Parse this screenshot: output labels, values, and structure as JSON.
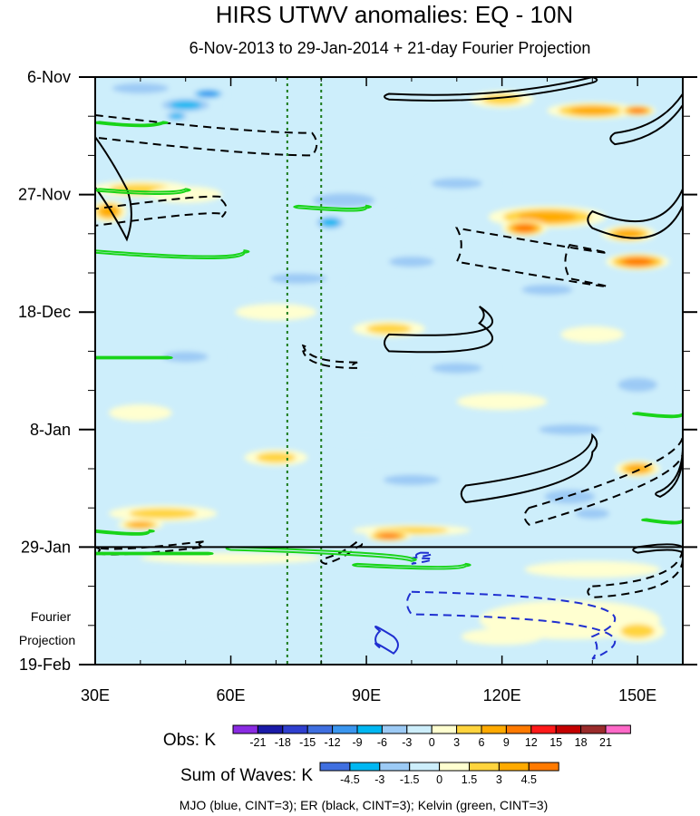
{
  "chart_data": {
    "type": "heatmap",
    "title": "HIRS UTWV anomalies: EQ - 10N",
    "subtitle": "6-Nov-2013 to 29-Jan-2014 + 21-day Fourier Projection",
    "x_axis": {
      "range": [
        30,
        160
      ],
      "ticks": [
        30,
        60,
        90,
        120,
        150
      ],
      "tick_labels": [
        "30E",
        "60E",
        "90E",
        "120E",
        "150E"
      ]
    },
    "y_axis": {
      "range_days": [
        0,
        105
      ],
      "ticks_days": [
        0,
        21,
        42,
        63,
        84,
        105
      ],
      "tick_labels": [
        "6-Nov",
        "27-Nov",
        "18-Dec",
        "8-Jan",
        "29-Jan",
        "19-Feb"
      ],
      "direction": "downward"
    },
    "observation_end_day": 84,
    "projection_label": [
      "Fourier",
      "Projection"
    ],
    "reference_lines_lon": [
      72.5,
      80
    ],
    "obs_colorbar": {
      "label": "Obs: K",
      "levels": [
        "-21",
        "-18",
        "-15",
        "-12",
        "-9",
        "-6",
        "-3",
        "0",
        "3",
        "6",
        "9",
        "12",
        "15",
        "18",
        "21"
      ],
      "colors": [
        "#8a2be2",
        "#1a1aa8",
        "#2f3fcf",
        "#3f6fe0",
        "#3a96ef",
        "#00b7f2",
        "#9ccaf5",
        "#cdeefb",
        "#ffffd0",
        "#ffd43d",
        "#ffaa00",
        "#ff7a00",
        "#ff1a1a",
        "#c40000",
        "#9a2b2b",
        "#ff69c8"
      ]
    },
    "waves_colorbar": {
      "label": "Sum of Waves: K",
      "levels": [
        "-4.5",
        "-3",
        "-1.5",
        "0",
        "1.5",
        "3",
        "4.5"
      ],
      "colors": [
        "#3f6fe0",
        "#00b7f2",
        "#9ccaf5",
        "#cdeefb",
        "#ffffd0",
        "#ffd43d",
        "#ffaa00",
        "#ff7a00"
      ]
    },
    "contours": {
      "MJO": {
        "color": "#1f2fd0",
        "cint": 3
      },
      "ER": {
        "color": "#000000",
        "cint": 3
      },
      "Kelvin": {
        "color": "#19d419",
        "cint": 3
      }
    },
    "footer": "MJO (blue, CINT=3); ER (black, CINT=3); Kelvin (green, CINT=3)"
  }
}
